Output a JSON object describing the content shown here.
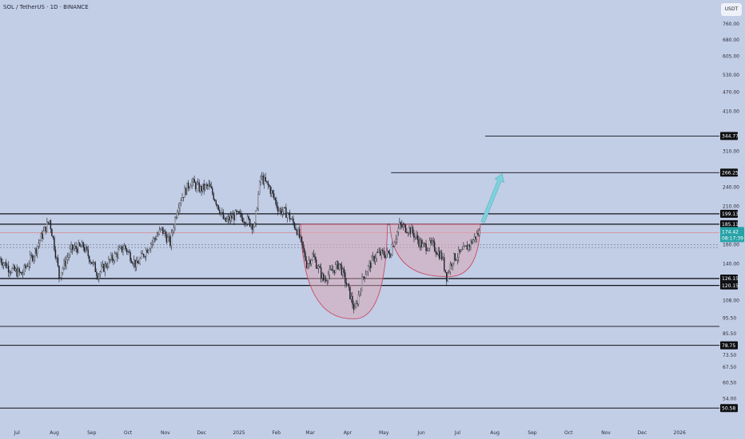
{
  "header": {
    "title": "SOL / TetherUS · 1D · BINANCE",
    "currency": "USDT"
  },
  "colors": {
    "background": "#c2cde6",
    "up_candle": "#f2f4f8",
    "down_candle": "#1c1f26",
    "level_line": "#111318",
    "pattern_fill": "#d9a9b6",
    "pattern_stroke": "#c94b63",
    "arrow": "#7fd2dc",
    "last_price_tag": "#27a3a8"
  },
  "chart_data": {
    "type": "candlestick",
    "symbol": "SOL / TetherUS",
    "interval": "1D",
    "exchange": "BINANCE",
    "y_scale": "log",
    "ylim": [
      45,
      900
    ],
    "y_ticks": [
      760.0,
      680.0,
      605.0,
      530.0,
      470.0,
      410.0,
      310.0,
      240.0,
      210.0,
      160.0,
      140.0,
      108.0,
      95.5,
      85.5,
      73.5,
      67.5,
      60.5,
      54.0
    ],
    "x_ticks": [
      {
        "label": "Jul",
        "date": "2024-07-01"
      },
      {
        "label": "Aug",
        "date": "2024-08-01"
      },
      {
        "label": "Sep",
        "date": "2024-09-01"
      },
      {
        "label": "Oct",
        "date": "2024-10-01"
      },
      {
        "label": "Nov",
        "date": "2024-11-01"
      },
      {
        "label": "Dec",
        "date": "2024-12-01"
      },
      {
        "label": "2025",
        "date": "2025-01-01"
      },
      {
        "label": "Feb",
        "date": "2025-02-01"
      },
      {
        "label": "Mar",
        "date": "2025-03-01"
      },
      {
        "label": "Apr",
        "date": "2025-04-01"
      },
      {
        "label": "May",
        "date": "2025-05-01"
      },
      {
        "label": "Jun",
        "date": "2025-06-01"
      },
      {
        "label": "Jul",
        "date": "2025-07-01"
      },
      {
        "label": "Aug",
        "date": "2025-08-01"
      },
      {
        "label": "Sep",
        "date": "2025-09-01"
      },
      {
        "label": "Oct",
        "date": "2025-10-01"
      },
      {
        "label": "Nov",
        "date": "2025-11-01"
      },
      {
        "label": "Dec",
        "date": "2025-12-01"
      },
      {
        "label": "2026",
        "date": "2026-01-01"
      }
    ],
    "price_path": [
      [
        "2024-06-17",
        145
      ],
      [
        "2024-06-25",
        135
      ],
      [
        "2024-07-05",
        130
      ],
      [
        "2024-07-15",
        150
      ],
      [
        "2024-07-28",
        190
      ],
      [
        "2024-08-05",
        128
      ],
      [
        "2024-08-15",
        155
      ],
      [
        "2024-08-25",
        158
      ],
      [
        "2024-09-06",
        130
      ],
      [
        "2024-09-20",
        148
      ],
      [
        "2024-09-28",
        158
      ],
      [
        "2024-10-08",
        138
      ],
      [
        "2024-10-20",
        162
      ],
      [
        "2024-10-29",
        178
      ],
      [
        "2024-11-05",
        162
      ],
      [
        "2024-11-12",
        215
      ],
      [
        "2024-11-22",
        250
      ],
      [
        "2024-11-30",
        237
      ],
      [
        "2024-12-07",
        242
      ],
      [
        "2024-12-13",
        218
      ],
      [
        "2024-12-20",
        188
      ],
      [
        "2024-12-30",
        198
      ],
      [
        "2025-01-08",
        190
      ],
      [
        "2025-01-14",
        182
      ],
      [
        "2025-01-19",
        258
      ],
      [
        "2025-01-26",
        240
      ],
      [
        "2025-02-03",
        205
      ],
      [
        "2025-02-10",
        200
      ],
      [
        "2025-02-18",
        178
      ],
      [
        "2025-02-26",
        140
      ],
      [
        "2025-03-03",
        148
      ],
      [
        "2025-03-12",
        125
      ],
      [
        "2025-03-25",
        140
      ],
      [
        "2025-04-07",
        100
      ],
      [
        "2025-04-14",
        128
      ],
      [
        "2025-04-25",
        150
      ],
      [
        "2025-05-06",
        150
      ],
      [
        "2025-05-14",
        183
      ],
      [
        "2025-05-23",
        178
      ],
      [
        "2025-06-02",
        158
      ],
      [
        "2025-06-10",
        160
      ],
      [
        "2025-06-18",
        147
      ],
      [
        "2025-06-22",
        128
      ],
      [
        "2025-06-27",
        145
      ],
      [
        "2025-07-05",
        152
      ],
      [
        "2025-07-12",
        162
      ],
      [
        "2025-07-19",
        175
      ]
    ],
    "horizontal_levels": [
      {
        "price": 344.77,
        "label": "344.77",
        "from_date": "2025-07-24"
      },
      {
        "price": 266.25,
        "label": "266.25",
        "from_date": "2025-05-07"
      },
      {
        "price": 199.13,
        "label": "199.13",
        "from_date": "2024-06-17"
      },
      {
        "price": 185.11,
        "label": "185.11",
        "from_date": "2024-06-17"
      },
      {
        "price": 126.15,
        "label": "126.15",
        "from_date": "2024-06-17"
      },
      {
        "price": 120.15,
        "label": "120.15",
        "from_date": "2024-06-17"
      },
      {
        "price": 90.0,
        "label": "",
        "from_date": "2024-06-17"
      },
      {
        "price": 78.75,
        "label": "78.75",
        "from_date": "2024-06-17"
      },
      {
        "price": 50.58,
        "label": "50.58",
        "from_date": "2024-06-17"
      }
    ],
    "last_price": {
      "value": "174.42",
      "countdown": "08:17:39",
      "price": 174.42
    },
    "patterns": [
      {
        "type": "cup",
        "start_date": "2025-02-21",
        "bottom_date": "2025-04-06",
        "end_date": "2025-05-04",
        "rim_price": 185,
        "bottom_price": 95
      },
      {
        "type": "handle",
        "start_date": "2025-05-06",
        "bottom_date": "2025-06-23",
        "end_date": "2025-07-20",
        "rim_price": 185,
        "bottom_price": 128
      }
    ],
    "projection_arrow": {
      "from_date": "2025-07-22",
      "from_price": 188,
      "to_date": "2025-08-07",
      "to_price": 264
    }
  }
}
